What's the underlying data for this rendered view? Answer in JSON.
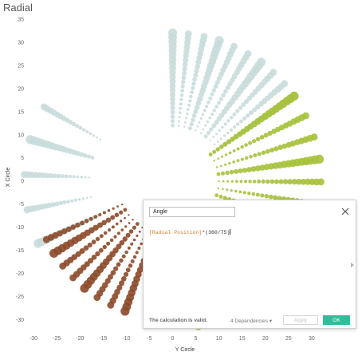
{
  "sheet": {
    "title": "Radial"
  },
  "chart_data": {
    "type": "scatter",
    "xlabel": "Y Circle",
    "ylabel": "X Circle",
    "xlim": [
      -30,
      35
    ],
    "ylim": [
      -32,
      35
    ],
    "x_ticks": [
      -30,
      -25,
      -20,
      -15,
      -10,
      -5,
      0,
      5,
      10,
      15,
      20,
      25,
      30
    ],
    "y_ticks": [
      35,
      30,
      25,
      20,
      15,
      10,
      5,
      0,
      -5,
      -10,
      -15,
      -20,
      -25,
      -30
    ],
    "grid": false,
    "colors": {
      "gray_segment": "#c9dcdc",
      "green_segment": "#a6c13a",
      "brown_segment": "#8c4a2a"
    },
    "series": [
      {
        "color_key": "gray_segment",
        "angle_range_deg": [
          0,
          55
        ],
        "radius_range": [
          12,
          32
        ],
        "spokes": 10,
        "points_per_spoke": 22
      },
      {
        "color_key": "green_segment",
        "angle_range_deg": [
          55,
          170
        ],
        "radius_range": [
          10,
          32
        ],
        "spokes": 14,
        "points_per_spoke": 24
      },
      {
        "color_key": "gray_segment",
        "angle_range_deg": [
          245,
          300
        ],
        "radius_range": [
          18,
          32
        ],
        "spokes": 5,
        "points_per_spoke": 18
      },
      {
        "color_key": "brown_segment",
        "angle_range_deg": [
          200,
          245
        ],
        "radius_range": [
          12,
          30
        ],
        "spokes": 8,
        "points_per_spoke": 18
      }
    ]
  },
  "calc_editor": {
    "name": "Angle",
    "formula_field": "[Radial Position]",
    "formula_rest": "*(360/75)",
    "status": "The calculation is valid.",
    "dependencies": "4 Dependencies ▾",
    "apply_label": "Apply",
    "ok_label": "OK"
  }
}
